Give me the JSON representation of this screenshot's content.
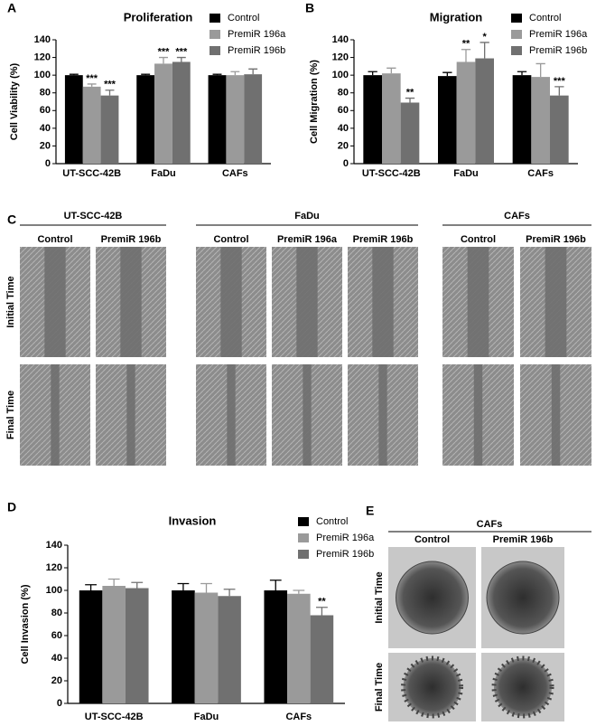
{
  "chart_data": [
    {
      "panel": "A",
      "type": "bar",
      "title": "Proliferation",
      "ylabel": "Cell Viability (%)",
      "categories": [
        "UT-SCC-42B",
        "FaDu",
        "CAFs"
      ],
      "series": [
        {
          "name": "Control",
          "color": "#000000",
          "values": [
            100,
            100,
            100
          ],
          "errors": [
            1,
            1,
            1
          ],
          "significance": [
            null,
            null,
            null
          ]
        },
        {
          "name": "PremiR 196a",
          "color": "#9a9a9a",
          "values": [
            87,
            113,
            100
          ],
          "errors": [
            3,
            7,
            4
          ],
          "significance": [
            "***",
            "***",
            null
          ]
        },
        {
          "name": "PremiR 196b",
          "color": "#707070",
          "values": [
            77,
            115,
            101
          ],
          "errors": [
            6,
            5,
            6
          ],
          "significance": [
            "***",
            "***",
            null
          ]
        }
      ],
      "ylim": [
        0,
        140
      ],
      "yticks": [
        0,
        20,
        40,
        60,
        80,
        100,
        120,
        140
      ],
      "legend": "upper right"
    },
    {
      "panel": "B",
      "type": "bar",
      "title": "Migration",
      "ylabel": "Cell Migration (%)",
      "categories": [
        "UT-SCC-42B",
        "FaDu",
        "CAFs"
      ],
      "series": [
        {
          "name": "Control",
          "color": "#000000",
          "values": [
            100,
            99,
            100
          ],
          "errors": [
            4,
            4,
            4
          ],
          "significance": [
            null,
            null,
            null
          ]
        },
        {
          "name": "PremiR 196a",
          "color": "#9a9a9a",
          "values": [
            102,
            115,
            98
          ],
          "errors": [
            6,
            14,
            15
          ],
          "significance": [
            null,
            "**",
            null
          ]
        },
        {
          "name": "PremiR 196b",
          "color": "#707070",
          "values": [
            69,
            119,
            77
          ],
          "errors": [
            5,
            18,
            10
          ],
          "significance": [
            "**",
            "*",
            "***"
          ]
        }
      ],
      "ylim": [
        0,
        140
      ],
      "yticks": [
        0,
        20,
        40,
        60,
        80,
        100,
        120,
        140
      ],
      "legend": "upper right"
    },
    {
      "panel": "D",
      "type": "bar",
      "title": "Invasion",
      "ylabel": "Cell Invasion (%)",
      "categories": [
        "UT-SCC-42B",
        "FaDu",
        "CAFs"
      ],
      "series": [
        {
          "name": "Control",
          "color": "#000000",
          "values": [
            100,
            100,
            100
          ],
          "errors": [
            5,
            6,
            9
          ],
          "significance": [
            null,
            null,
            null
          ]
        },
        {
          "name": "PremiR 196a",
          "color": "#9a9a9a",
          "values": [
            104,
            98,
            97
          ],
          "errors": [
            6,
            8,
            3
          ],
          "significance": [
            null,
            null,
            null
          ]
        },
        {
          "name": "PremiR 196b",
          "color": "#707070",
          "values": [
            102,
            95,
            78
          ],
          "errors": [
            5,
            6,
            7
          ],
          "significance": [
            null,
            null,
            "**"
          ]
        }
      ],
      "ylim": [
        0,
        140
      ],
      "yticks": [
        0,
        20,
        40,
        60,
        80,
        100,
        120,
        140
      ],
      "legend": "upper right"
    }
  ],
  "panel_c": {
    "label": "C",
    "row_labels": [
      "Initial Time",
      "Final Time"
    ],
    "groups": [
      {
        "title": "UT-SCC-42B",
        "columns": [
          "Control",
          "PremiR 196b"
        ]
      },
      {
        "title": "FaDu",
        "columns": [
          "Control",
          "PremiR 196a",
          "PremiR 196b"
        ]
      },
      {
        "title": "CAFs",
        "columns": [
          "Control",
          "PremiR 196b"
        ]
      }
    ]
  },
  "panel_e": {
    "label": "E",
    "title": "CAFs",
    "columns": [
      "Control",
      "PremiR 196b"
    ],
    "row_labels": [
      "Initial Time",
      "Final Time"
    ]
  }
}
